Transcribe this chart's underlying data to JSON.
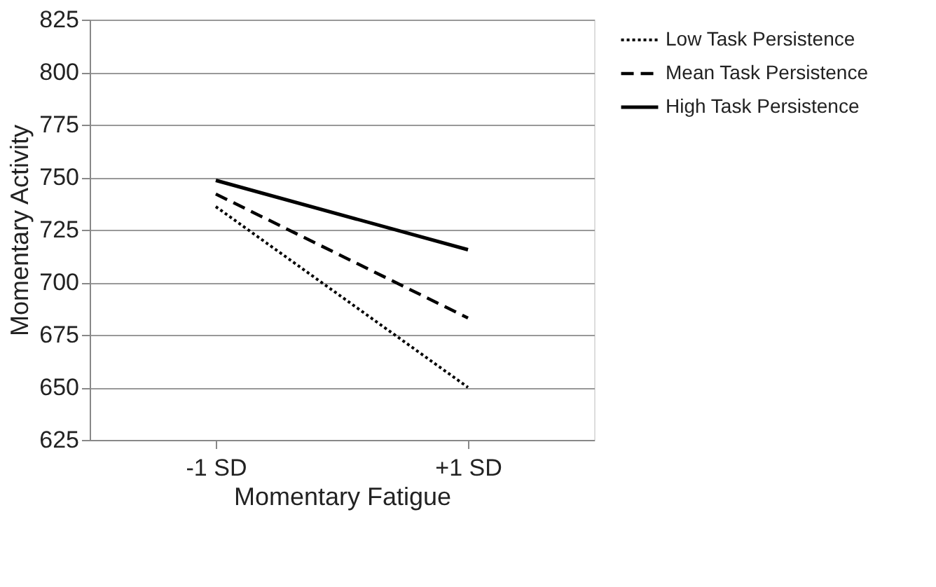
{
  "chart_data": {
    "type": "line",
    "xlabel": "Momentary Fatigue",
    "ylabel": "Momentary Activity",
    "categories": [
      "-1 SD",
      "+1 SD"
    ],
    "series": [
      {
        "name": "Low Task Persistence",
        "color": "#000000",
        "line_style": "dotted",
        "values": [
          736,
          650
        ]
      },
      {
        "name": "Mean Task Persistence",
        "color": "#000000",
        "line_style": "dashed",
        "values": [
          742,
          683
        ]
      },
      {
        "name": "High Task Persistence",
        "color": "#000000",
        "line_style": "solid",
        "values": [
          748.5,
          715.5
        ]
      }
    ],
    "ylim": [
      625,
      825
    ],
    "yticks": [
      625,
      650,
      675,
      700,
      725,
      750,
      775,
      800,
      825
    ],
    "grid": "y",
    "legend": "right",
    "marker": "none"
  }
}
